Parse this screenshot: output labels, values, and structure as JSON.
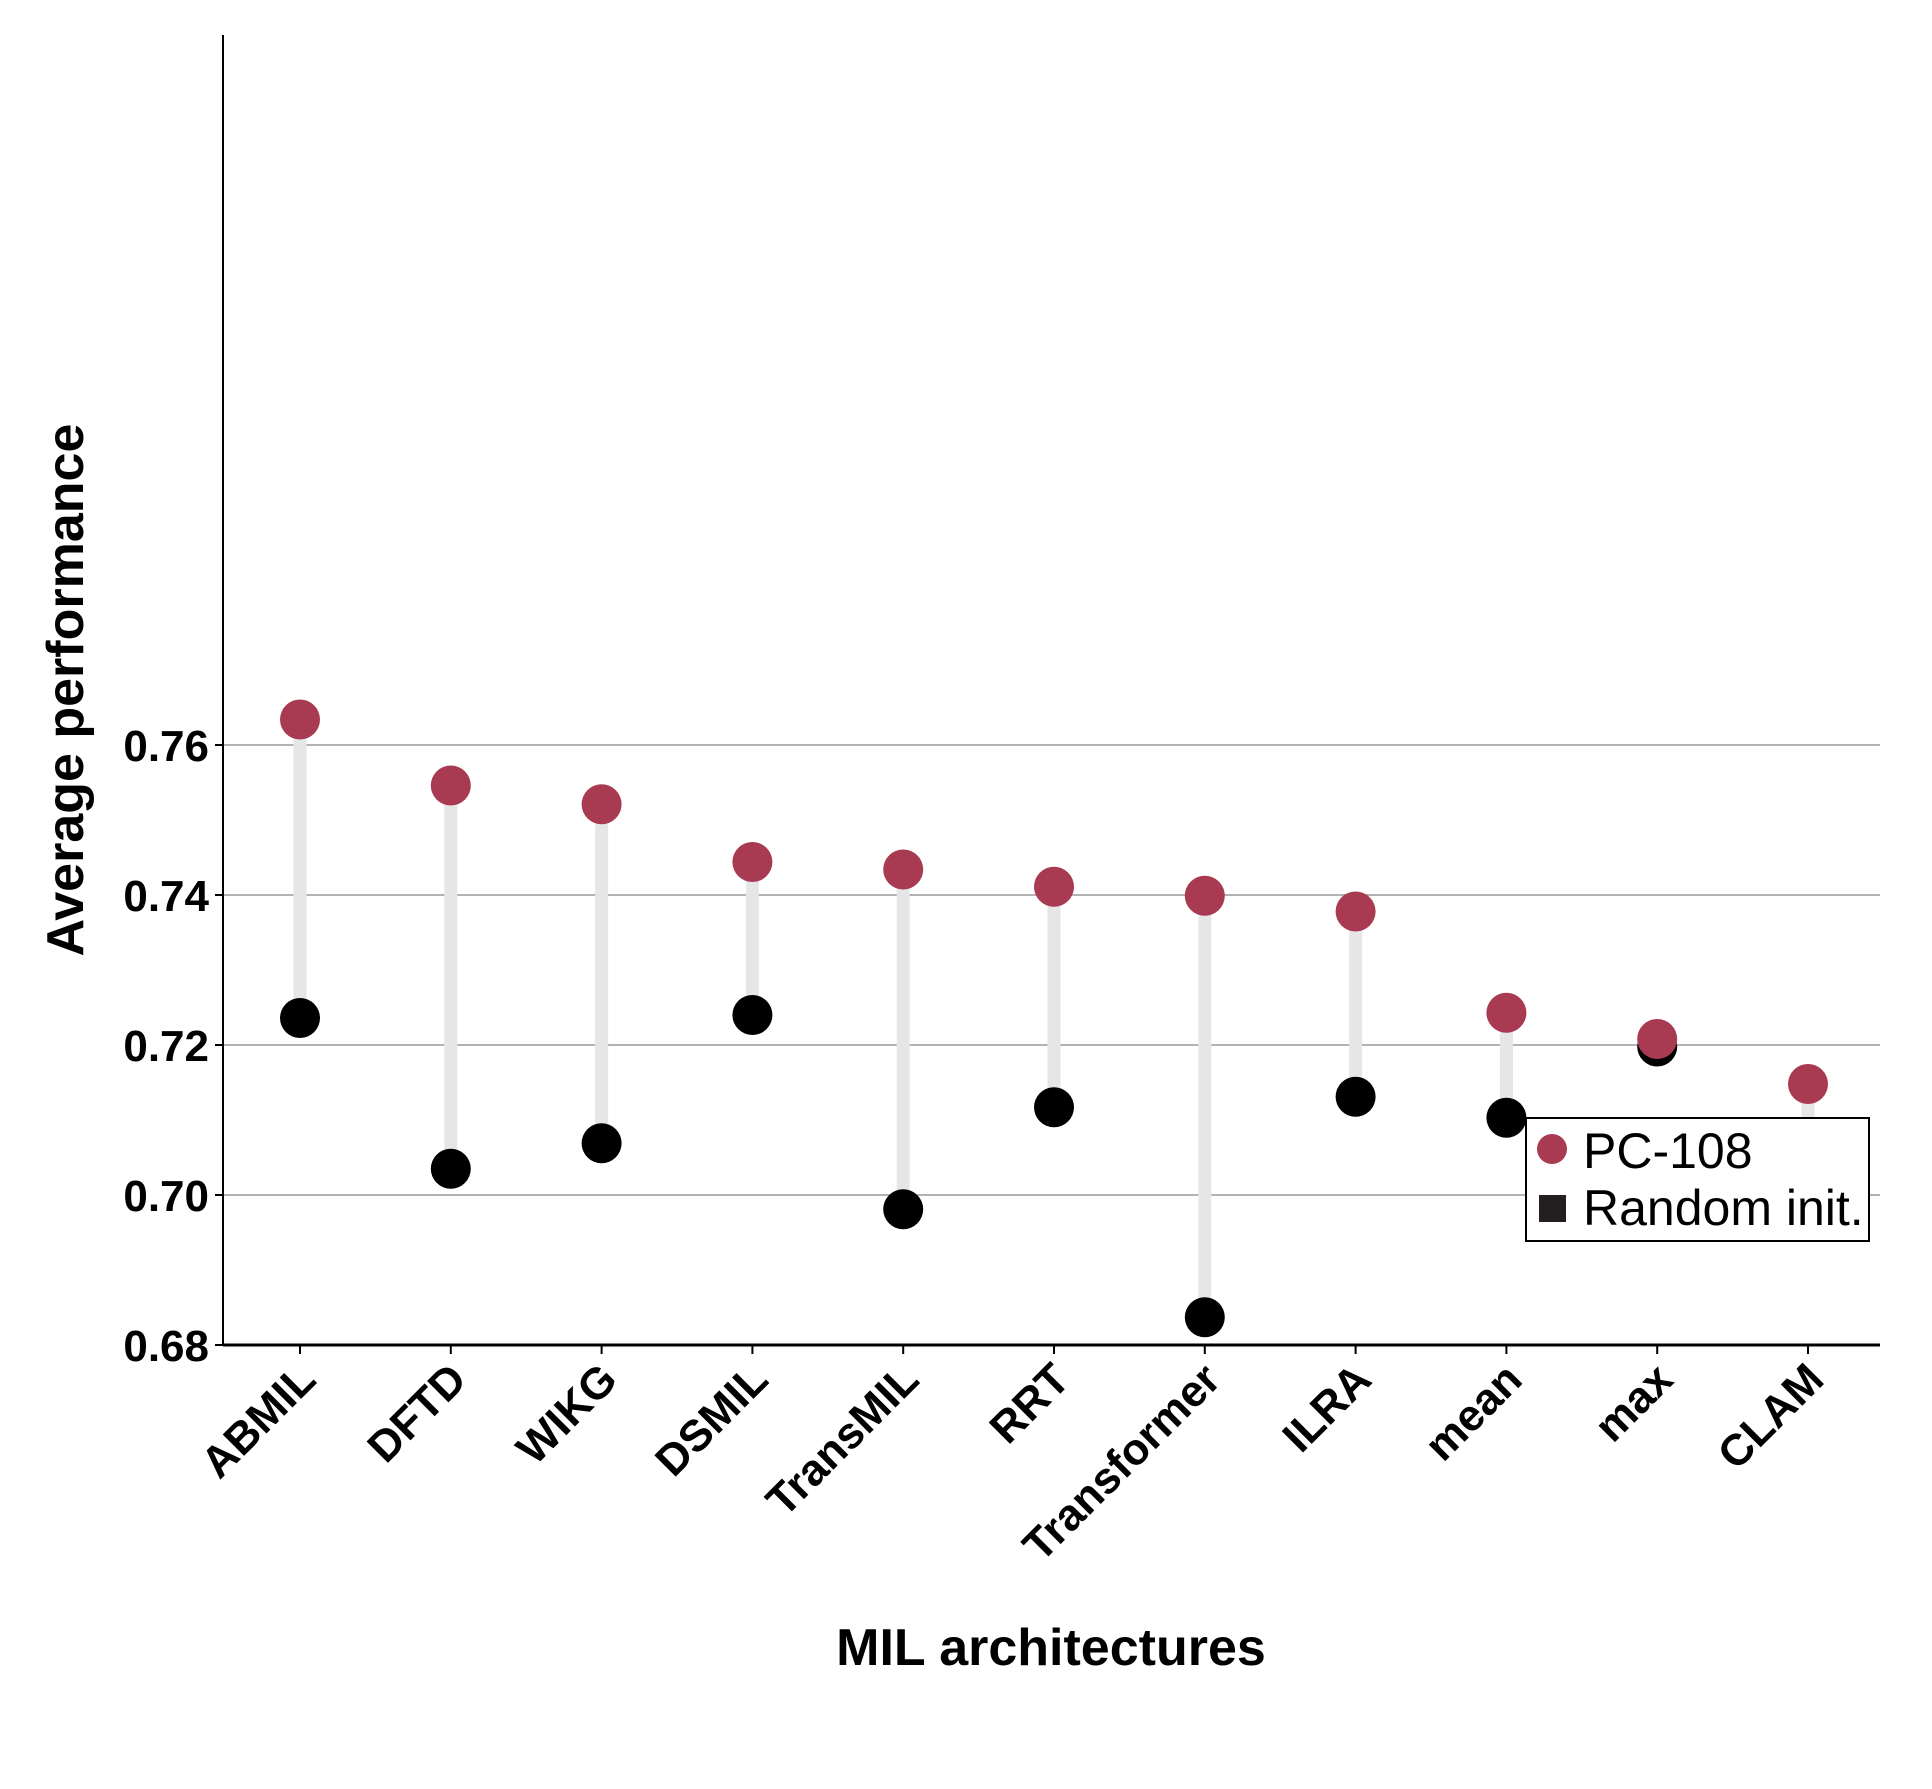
{
  "chart_data": {
    "type": "dumbbell",
    "xlabel": "MIL architectures",
    "ylabel": "Average performance",
    "ylim": [
      0.68,
      0.767
    ],
    "yticks": [
      "0.68",
      "0.70",
      "0.72",
      "0.74",
      "0.76"
    ],
    "grid": "horizontal",
    "legend_position": "bottom-right",
    "categories": [
      "ABMIL",
      "DFTD",
      "WIKG",
      "DSMIL",
      "TransMIL",
      "RRT",
      "Transformer",
      "ILRA",
      "mean",
      "max",
      "CLAM"
    ],
    "series": [
      {
        "name": "PC-108",
        "marker": "circle",
        "color": "#a83a52",
        "values": [
          0.7634,
          0.7546,
          0.7521,
          0.7444,
          0.7434,
          0.7411,
          0.7399,
          0.7378,
          0.7243,
          0.7208,
          0.7148
        ]
      },
      {
        "name": "Random init.",
        "marker": "circle",
        "legend_marker": "square",
        "color": "#000000",
        "values": [
          0.7236,
          0.7035,
          0.7069,
          0.724,
          0.6981,
          0.7117,
          0.6837,
          0.7131,
          0.7103,
          0.7198,
          0.7071
        ]
      }
    ],
    "connector_color": "#e6e6e6",
    "grid_color": "#b3b3b3"
  }
}
